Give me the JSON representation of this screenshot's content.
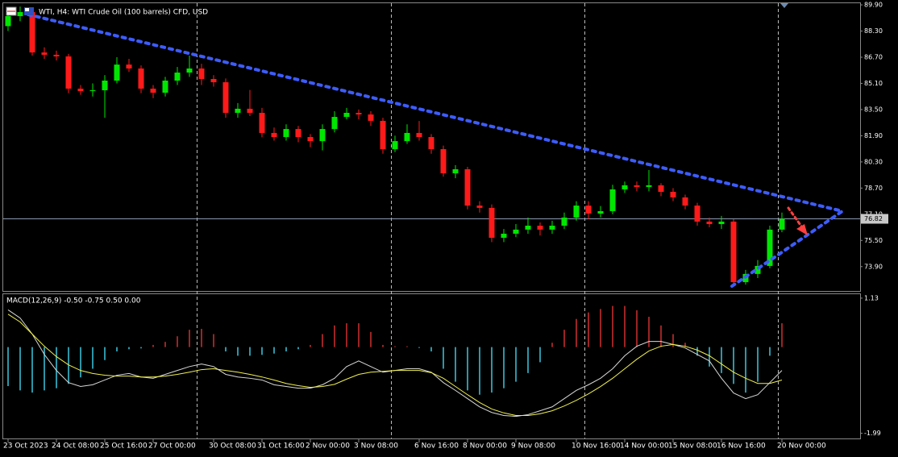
{
  "chart_data": {
    "type": "candlestick",
    "title": "WTI, H4:  WTI Crude Oil (100 barrels) CFD, USD",
    "indicator_label": "MACD(12,26,9) -0.50 -0.75 0.50 0.00",
    "up_color": "#00e600",
    "down_color": "#ff1a1a",
    "ylim": [
      72.41,
      90.05
    ],
    "yticks": [
      {
        "value": 89.9,
        "label": "89.90"
      },
      {
        "value": 88.3,
        "label": "88.30"
      },
      {
        "value": 86.7,
        "label": "86.70"
      },
      {
        "value": 85.1,
        "label": "85.10"
      },
      {
        "value": 83.5,
        "label": "83.50"
      },
      {
        "value": 81.9,
        "label": "81.90"
      },
      {
        "value": 80.3,
        "label": "80.30"
      },
      {
        "value": 78.7,
        "label": "78.70"
      },
      {
        "value": 77.1,
        "label": "77.10"
      },
      {
        "value": 75.5,
        "label": "75.50"
      },
      {
        "value": 73.9,
        "label": "73.90"
      }
    ],
    "current_price": 76.82,
    "categories": [
      "23 Oct 2023",
      null,
      null,
      null,
      "24 Oct 08:00",
      null,
      null,
      null,
      "25 Oct 16:00",
      null,
      null,
      null,
      "27 Oct 00:00",
      null,
      null,
      null,
      null,
      "30 Oct 08:00",
      null,
      null,
      null,
      "31 Oct 16:00",
      null,
      null,
      null,
      "2 Nov 00:00",
      null,
      null,
      null,
      "3 Nov 08:00",
      null,
      null,
      null,
      null,
      "6 Nov 16:00",
      null,
      null,
      null,
      "8 Nov 00:00",
      null,
      null,
      null,
      "9 Nov 08:00",
      null,
      null,
      null,
      null,
      "10 Nov 16:00",
      null,
      null,
      null,
      "14 Nov 00:00",
      null,
      null,
      null,
      "15 Nov 08:00",
      null,
      null,
      null,
      "16 Nov 16:00",
      null,
      null,
      null,
      null,
      "20 Nov 00:00"
    ],
    "candles": [
      [
        88.6,
        89.5,
        88.3,
        89.21
      ],
      [
        89.21,
        89.8,
        88.9,
        89.46
      ],
      [
        89.46,
        89.6,
        86.8,
        86.99
      ],
      [
        86.99,
        87.3,
        86.6,
        86.85
      ],
      [
        86.85,
        87.1,
        86.5,
        86.75
      ],
      [
        86.75,
        86.9,
        84.5,
        84.78
      ],
      [
        84.78,
        85.0,
        84.4,
        84.63
      ],
      [
        84.63,
        85.1,
        84.3,
        84.68
      ],
      [
        84.68,
        85.6,
        83.0,
        85.27
      ],
      [
        85.27,
        86.7,
        85.1,
        86.25
      ],
      [
        86.25,
        86.6,
        85.8,
        86.01
      ],
      [
        86.01,
        86.2,
        84.5,
        84.78
      ],
      [
        84.78,
        85.0,
        84.2,
        84.53
      ],
      [
        84.53,
        85.5,
        84.3,
        85.27
      ],
      [
        85.27,
        86.1,
        85.0,
        85.76
      ],
      [
        85.76,
        86.8,
        85.5,
        86.01
      ],
      [
        86.01,
        86.3,
        85.0,
        85.37
      ],
      [
        85.37,
        85.6,
        84.9,
        85.17
      ],
      [
        85.17,
        85.4,
        83.0,
        83.3
      ],
      [
        83.3,
        83.9,
        83.0,
        83.55
      ],
      [
        83.55,
        84.7,
        83.1,
        83.3
      ],
      [
        83.3,
        83.6,
        81.8,
        82.07
      ],
      [
        82.07,
        82.4,
        81.6,
        81.82
      ],
      [
        81.82,
        82.6,
        81.6,
        82.31
      ],
      [
        82.31,
        82.5,
        81.5,
        81.82
      ],
      [
        81.82,
        82.0,
        81.2,
        81.57
      ],
      [
        81.57,
        82.6,
        81.0,
        82.31
      ],
      [
        82.31,
        83.4,
        82.1,
        83.05
      ],
      [
        83.05,
        83.6,
        82.9,
        83.3
      ],
      [
        83.3,
        83.5,
        82.9,
        83.2
      ],
      [
        83.2,
        83.4,
        82.5,
        82.81
      ],
      [
        82.81,
        83.0,
        80.8,
        81.08
      ],
      [
        81.08,
        81.9,
        80.9,
        81.57
      ],
      [
        81.57,
        82.6,
        81.4,
        82.07
      ],
      [
        82.07,
        82.8,
        81.6,
        81.82
      ],
      [
        81.82,
        82.0,
        80.8,
        81.08
      ],
      [
        81.08,
        81.3,
        79.4,
        79.6
      ],
      [
        79.6,
        80.1,
        79.3,
        79.85
      ],
      [
        79.85,
        80.0,
        77.4,
        77.63
      ],
      [
        77.63,
        77.9,
        77.2,
        77.49
      ],
      [
        77.49,
        77.7,
        75.4,
        75.66
      ],
      [
        75.66,
        76.2,
        75.4,
        75.91
      ],
      [
        75.91,
        76.5,
        75.7,
        76.16
      ],
      [
        76.16,
        76.9,
        75.9,
        76.4
      ],
      [
        76.4,
        76.6,
        75.8,
        76.16
      ],
      [
        76.16,
        76.7,
        75.9,
        76.4
      ],
      [
        76.4,
        77.2,
        76.2,
        76.9
      ],
      [
        76.9,
        77.9,
        76.7,
        77.63
      ],
      [
        77.63,
        77.9,
        76.8,
        77.14
      ],
      [
        77.14,
        77.6,
        76.9,
        77.29
      ],
      [
        77.29,
        78.9,
        77.1,
        78.62
      ],
      [
        78.62,
        79.1,
        78.4,
        78.87
      ],
      [
        78.87,
        79.1,
        78.5,
        78.77
      ],
      [
        78.77,
        79.8,
        78.5,
        78.87
      ],
      [
        78.87,
        79.0,
        78.2,
        78.47
      ],
      [
        78.47,
        78.7,
        77.9,
        78.13
      ],
      [
        78.13,
        78.3,
        77.4,
        77.63
      ],
      [
        77.63,
        77.8,
        76.4,
        76.65
      ],
      [
        76.65,
        76.9,
        76.3,
        76.5
      ],
      [
        76.5,
        77.0,
        76.2,
        76.65
      ],
      [
        76.65,
        76.8,
        72.7,
        72.95
      ],
      [
        72.95,
        73.7,
        72.8,
        73.45
      ],
      [
        73.45,
        74.3,
        73.2,
        73.94
      ],
      [
        73.94,
        76.4,
        73.8,
        76.16
      ],
      [
        76.16,
        77.2,
        76.0,
        76.82
      ]
    ],
    "y2lim": [
      -2.11,
      1.24
    ],
    "y2ticks": [
      1.13,
      -1.99
    ],
    "macd": {
      "pos_color": "#d03030",
      "neg_color": "#3cc8e0",
      "main_color": "#d8d8d8",
      "signal_color": "#f0f050",
      "histogram": [
        -0.9,
        -1.0,
        -1.05,
        -1.0,
        -0.95,
        -0.85,
        -0.7,
        -0.5,
        -0.3,
        -0.1,
        -0.05,
        -0.03,
        0.05,
        0.12,
        0.25,
        0.4,
        0.42,
        0.3,
        -0.1,
        -0.2,
        -0.2,
        -0.18,
        -0.15,
        -0.1,
        -0.05,
        0.05,
        0.3,
        0.5,
        0.55,
        0.55,
        0.35,
        0.05,
        0.02,
        0.02,
        -0.02,
        -0.1,
        -0.5,
        -0.8,
        -1.0,
        -1.1,
        -1.05,
        -0.95,
        -0.8,
        -0.6,
        -0.35,
        0.1,
        0.4,
        0.65,
        0.8,
        0.88,
        0.95,
        0.95,
        0.85,
        0.7,
        0.5,
        0.3,
        0.1,
        -0.2,
        -0.45,
        -0.6,
        -0.85,
        -1.05,
        -0.8,
        -0.2,
        0.55
      ],
      "main": [
        0.86,
        0.67,
        0.3,
        -0.17,
        -0.54,
        -0.82,
        -0.91,
        -0.87,
        -0.76,
        -0.65,
        -0.61,
        -0.69,
        -0.72,
        -0.63,
        -0.54,
        -0.45,
        -0.39,
        -0.45,
        -0.63,
        -0.69,
        -0.72,
        -0.76,
        -0.87,
        -0.91,
        -0.95,
        -0.95,
        -0.87,
        -0.72,
        -0.45,
        -0.32,
        -0.45,
        -0.58,
        -0.54,
        -0.5,
        -0.5,
        -0.58,
        -0.82,
        -1.0,
        -1.19,
        -1.38,
        -1.51,
        -1.58,
        -1.6,
        -1.56,
        -1.47,
        -1.38,
        -1.19,
        -1.0,
        -0.87,
        -0.72,
        -0.5,
        -0.2,
        0.02,
        0.13,
        0.13,
        0.06,
        -0.02,
        -0.17,
        -0.32,
        -0.72,
        -1.06,
        -1.19,
        -1.1,
        -0.82,
        -0.54
      ],
      "signal": [
        0.76,
        0.58,
        0.3,
        0.02,
        -0.22,
        -0.41,
        -0.54,
        -0.61,
        -0.65,
        -0.67,
        -0.67,
        -0.69,
        -0.69,
        -0.67,
        -0.63,
        -0.58,
        -0.52,
        -0.5,
        -0.54,
        -0.58,
        -0.63,
        -0.69,
        -0.76,
        -0.84,
        -0.89,
        -0.93,
        -0.91,
        -0.86,
        -0.74,
        -0.63,
        -0.58,
        -0.56,
        -0.54,
        -0.54,
        -0.54,
        -0.59,
        -0.72,
        -0.91,
        -1.1,
        -1.28,
        -1.43,
        -1.52,
        -1.58,
        -1.58,
        -1.54,
        -1.47,
        -1.36,
        -1.23,
        -1.08,
        -0.91,
        -0.72,
        -0.5,
        -0.28,
        -0.09,
        0.02,
        0.06,
        0.02,
        -0.07,
        -0.2,
        -0.39,
        -0.58,
        -0.72,
        -0.84,
        -0.84,
        -0.76
      ]
    }
  }
}
